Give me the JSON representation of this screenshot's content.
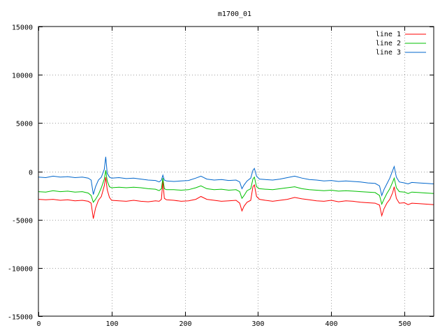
{
  "chart_data": {
    "type": "line",
    "title": "m1700_01",
    "xlabel": "",
    "ylabel": "",
    "xlim": [
      0,
      540
    ],
    "ylim": [
      -15000,
      15000
    ],
    "x_ticks": [
      0,
      100,
      200,
      300,
      400,
      500
    ],
    "y_ticks": [
      -15000,
      -10000,
      -5000,
      0,
      5000,
      10000,
      15000
    ],
    "grid": true,
    "legend_position": "top-right",
    "series": [
      {
        "name": "line 1",
        "color": "#ff0000",
        "points": [
          [
            0,
            -2900
          ],
          [
            10,
            -2950
          ],
          [
            20,
            -2900
          ],
          [
            30,
            -3000
          ],
          [
            40,
            -2950
          ],
          [
            50,
            -3050
          ],
          [
            60,
            -3000
          ],
          [
            68,
            -3100
          ],
          [
            72,
            -3300
          ],
          [
            75,
            -4900
          ],
          [
            78,
            -3800
          ],
          [
            82,
            -3000
          ],
          [
            86,
            -2600
          ],
          [
            90,
            -1500
          ],
          [
            92,
            -600
          ],
          [
            94,
            -1900
          ],
          [
            97,
            -2700
          ],
          [
            100,
            -3000
          ],
          [
            110,
            -3050
          ],
          [
            120,
            -3100
          ],
          [
            130,
            -3000
          ],
          [
            140,
            -3100
          ],
          [
            150,
            -3150
          ],
          [
            160,
            -3050
          ],
          [
            165,
            -3100
          ],
          [
            168,
            -2900
          ],
          [
            170,
            -1000
          ],
          [
            172,
            -2800
          ],
          [
            175,
            -2950
          ],
          [
            185,
            -3000
          ],
          [
            195,
            -3100
          ],
          [
            205,
            -3050
          ],
          [
            215,
            -2900
          ],
          [
            222,
            -2600
          ],
          [
            230,
            -2900
          ],
          [
            240,
            -3000
          ],
          [
            250,
            -3100
          ],
          [
            260,
            -3050
          ],
          [
            270,
            -3000
          ],
          [
            275,
            -3300
          ],
          [
            278,
            -4100
          ],
          [
            281,
            -3600
          ],
          [
            285,
            -3200
          ],
          [
            290,
            -3000
          ],
          [
            293,
            -1600
          ],
          [
            295,
            -1400
          ],
          [
            298,
            -2600
          ],
          [
            302,
            -2900
          ],
          [
            310,
            -3000
          ],
          [
            320,
            -3100
          ],
          [
            330,
            -3000
          ],
          [
            340,
            -2900
          ],
          [
            350,
            -2700
          ],
          [
            360,
            -2850
          ],
          [
            370,
            -2950
          ],
          [
            380,
            -3050
          ],
          [
            390,
            -3100
          ],
          [
            400,
            -3000
          ],
          [
            410,
            -3150
          ],
          [
            420,
            -3050
          ],
          [
            430,
            -3100
          ],
          [
            440,
            -3200
          ],
          [
            450,
            -3250
          ],
          [
            460,
            -3300
          ],
          [
            466,
            -3500
          ],
          [
            469,
            -4600
          ],
          [
            472,
            -3900
          ],
          [
            476,
            -3300
          ],
          [
            480,
            -2900
          ],
          [
            484,
            -2200
          ],
          [
            486,
            -1600
          ],
          [
            489,
            -2800
          ],
          [
            493,
            -3300
          ],
          [
            500,
            -3250
          ],
          [
            505,
            -3450
          ],
          [
            510,
            -3300
          ],
          [
            520,
            -3350
          ],
          [
            530,
            -3400
          ],
          [
            540,
            -3450
          ]
        ]
      },
      {
        "name": "line 2",
        "color": "#00c000",
        "points": [
          [
            0,
            -2100
          ],
          [
            10,
            -2150
          ],
          [
            20,
            -2000
          ],
          [
            30,
            -2100
          ],
          [
            40,
            -2050
          ],
          [
            50,
            -2150
          ],
          [
            60,
            -2100
          ],
          [
            68,
            -2250
          ],
          [
            72,
            -2500
          ],
          [
            75,
            -3200
          ],
          [
            78,
            -2900
          ],
          [
            82,
            -2400
          ],
          [
            86,
            -1700
          ],
          [
            90,
            -800
          ],
          [
            92,
            100
          ],
          [
            94,
            -1000
          ],
          [
            97,
            -1600
          ],
          [
            100,
            -1700
          ],
          [
            110,
            -1650
          ],
          [
            120,
            -1700
          ],
          [
            130,
            -1650
          ],
          [
            140,
            -1700
          ],
          [
            150,
            -1800
          ],
          [
            160,
            -1850
          ],
          [
            165,
            -2000
          ],
          [
            168,
            -1800
          ],
          [
            170,
            -700
          ],
          [
            172,
            -1800
          ],
          [
            175,
            -1900
          ],
          [
            185,
            -1900
          ],
          [
            195,
            -1950
          ],
          [
            205,
            -1900
          ],
          [
            215,
            -1700
          ],
          [
            222,
            -1500
          ],
          [
            230,
            -1800
          ],
          [
            240,
            -1900
          ],
          [
            250,
            -1850
          ],
          [
            260,
            -1950
          ],
          [
            270,
            -1900
          ],
          [
            275,
            -2100
          ],
          [
            278,
            -2800
          ],
          [
            281,
            -2500
          ],
          [
            285,
            -2000
          ],
          [
            290,
            -1800
          ],
          [
            293,
            -800
          ],
          [
            295,
            -600
          ],
          [
            298,
            -1600
          ],
          [
            302,
            -1800
          ],
          [
            310,
            -1850
          ],
          [
            320,
            -1900
          ],
          [
            330,
            -1800
          ],
          [
            340,
            -1700
          ],
          [
            350,
            -1600
          ],
          [
            360,
            -1800
          ],
          [
            370,
            -1900
          ],
          [
            380,
            -1950
          ],
          [
            390,
            -2000
          ],
          [
            400,
            -1950
          ],
          [
            410,
            -2050
          ],
          [
            420,
            -2000
          ],
          [
            430,
            -2050
          ],
          [
            440,
            -2100
          ],
          [
            450,
            -2150
          ],
          [
            460,
            -2200
          ],
          [
            466,
            -2500
          ],
          [
            469,
            -3400
          ],
          [
            472,
            -2900
          ],
          [
            476,
            -2300
          ],
          [
            480,
            -1800
          ],
          [
            484,
            -1100
          ],
          [
            486,
            -700
          ],
          [
            489,
            -1700
          ],
          [
            493,
            -2100
          ],
          [
            500,
            -2150
          ],
          [
            505,
            -2300
          ],
          [
            510,
            -2150
          ],
          [
            520,
            -2200
          ],
          [
            530,
            -2250
          ],
          [
            540,
            -2300
          ]
        ]
      },
      {
        "name": "line 3",
        "color": "#0066cc",
        "points": [
          [
            0,
            -600
          ],
          [
            10,
            -650
          ],
          [
            20,
            -500
          ],
          [
            30,
            -600
          ],
          [
            40,
            -550
          ],
          [
            50,
            -650
          ],
          [
            60,
            -600
          ],
          [
            68,
            -700
          ],
          [
            72,
            -900
          ],
          [
            75,
            -2400
          ],
          [
            78,
            -1600
          ],
          [
            82,
            -900
          ],
          [
            86,
            -600
          ],
          [
            90,
            200
          ],
          [
            92,
            1500
          ],
          [
            94,
            -200
          ],
          [
            97,
            -600
          ],
          [
            100,
            -700
          ],
          [
            110,
            -650
          ],
          [
            120,
            -750
          ],
          [
            130,
            -700
          ],
          [
            140,
            -800
          ],
          [
            150,
            -900
          ],
          [
            160,
            -950
          ],
          [
            165,
            -1100
          ],
          [
            168,
            -900
          ],
          [
            170,
            -400
          ],
          [
            172,
            -900
          ],
          [
            175,
            -1000
          ],
          [
            185,
            -1050
          ],
          [
            195,
            -1000
          ],
          [
            205,
            -950
          ],
          [
            215,
            -700
          ],
          [
            222,
            -500
          ],
          [
            230,
            -800
          ],
          [
            240,
            -900
          ],
          [
            250,
            -850
          ],
          [
            260,
            -950
          ],
          [
            270,
            -900
          ],
          [
            275,
            -1100
          ],
          [
            278,
            -1800
          ],
          [
            281,
            -1400
          ],
          [
            285,
            -1000
          ],
          [
            290,
            -700
          ],
          [
            293,
            100
          ],
          [
            295,
            300
          ],
          [
            298,
            -500
          ],
          [
            302,
            -800
          ],
          [
            310,
            -850
          ],
          [
            320,
            -900
          ],
          [
            330,
            -800
          ],
          [
            340,
            -650
          ],
          [
            350,
            -500
          ],
          [
            360,
            -700
          ],
          [
            370,
            -850
          ],
          [
            380,
            -900
          ],
          [
            390,
            -1000
          ],
          [
            400,
            -950
          ],
          [
            410,
            -1050
          ],
          [
            420,
            -1000
          ],
          [
            430,
            -1050
          ],
          [
            440,
            -1100
          ],
          [
            450,
            -1200
          ],
          [
            460,
            -1250
          ],
          [
            466,
            -1500
          ],
          [
            469,
            -2500
          ],
          [
            472,
            -1900
          ],
          [
            476,
            -1300
          ],
          [
            480,
            -700
          ],
          [
            484,
            100
          ],
          [
            486,
            500
          ],
          [
            489,
            -600
          ],
          [
            493,
            -1100
          ],
          [
            500,
            -1200
          ],
          [
            505,
            -1300
          ],
          [
            510,
            -1150
          ],
          [
            520,
            -1200
          ],
          [
            530,
            -1250
          ],
          [
            540,
            -1300
          ]
        ]
      }
    ]
  }
}
